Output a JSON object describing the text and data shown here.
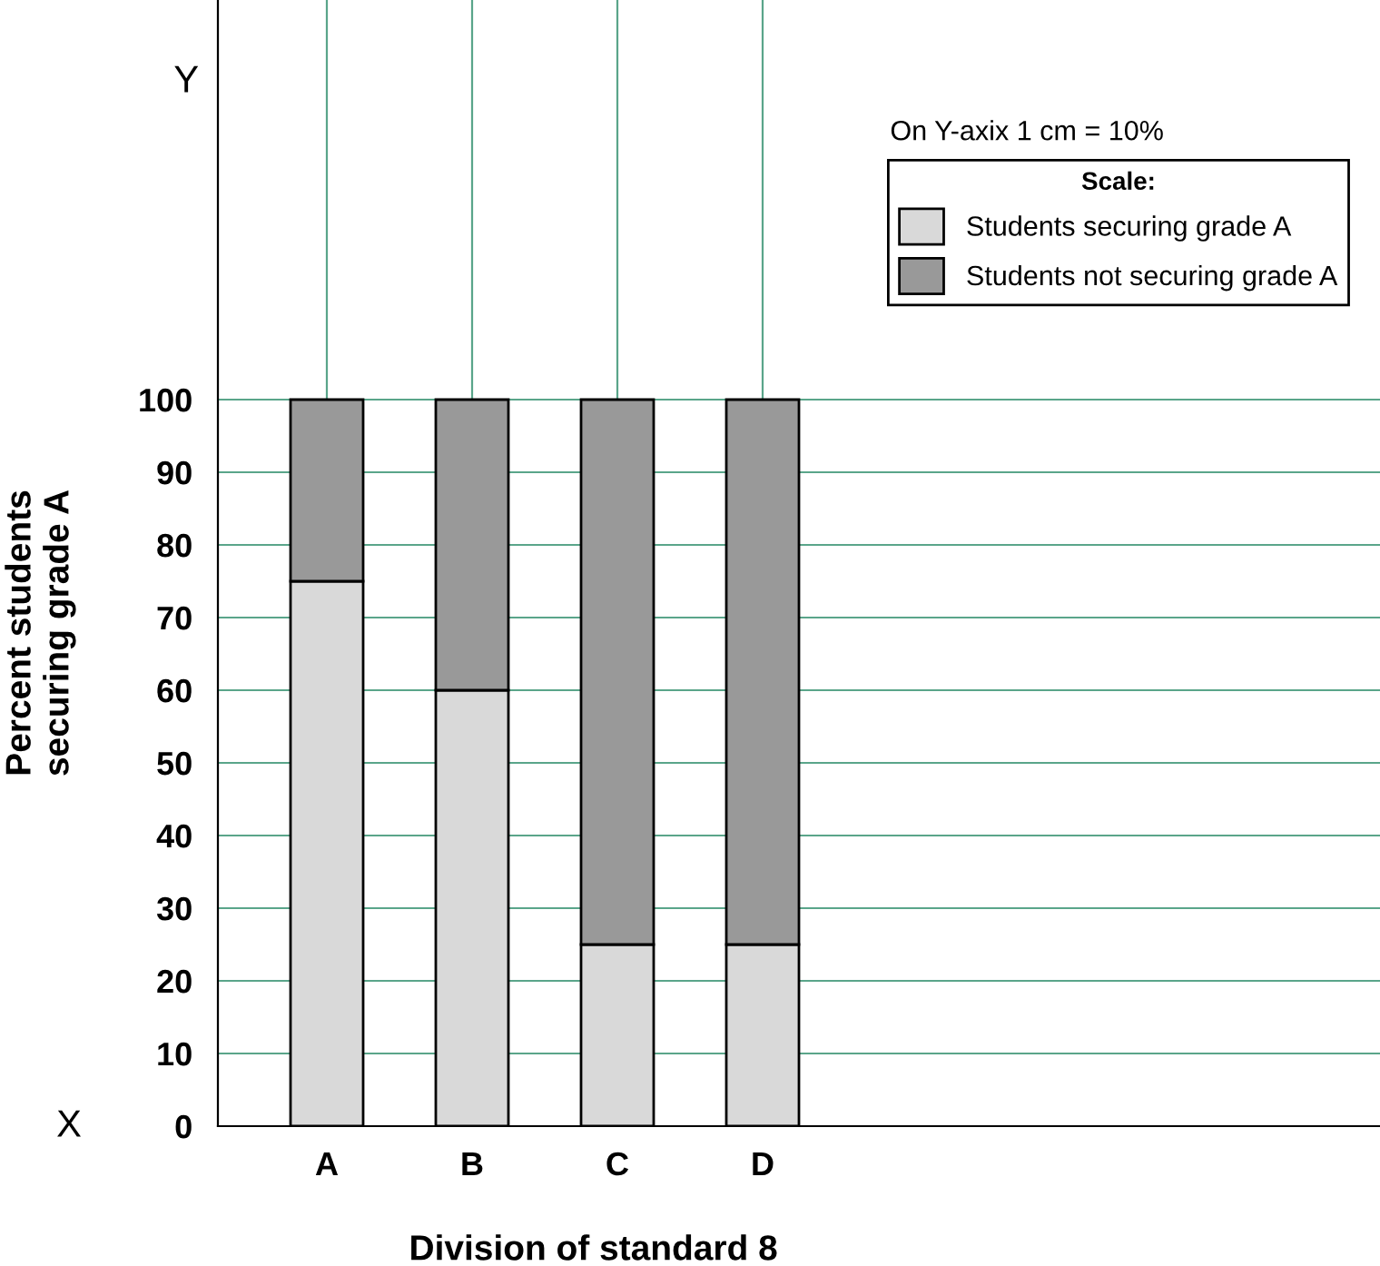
{
  "chart_data": {
    "type": "bar",
    "stacked": true,
    "categories": [
      "A",
      "B",
      "C",
      "D"
    ],
    "series": [
      {
        "name": "Students securing grade A",
        "color": "#d9d9d9",
        "values": [
          75,
          60,
          25,
          25
        ]
      },
      {
        "name": "Students not securing grade A",
        "color": "#999999",
        "values": [
          25,
          40,
          75,
          75
        ]
      }
    ],
    "xlabel": "Division of standard 8",
    "ylabel": "Percent students\nsecuring grade A",
    "legend_title": "Scale:",
    "annotations": [
      "On Y-axix 1 cm = 10%",
      "X",
      "Y"
    ],
    "ylim": [
      0,
      155
    ],
    "yticks": [
      0,
      10,
      20,
      30,
      40,
      50,
      60,
      70,
      80,
      90,
      100
    ],
    "grid": true,
    "legend": "top right"
  }
}
